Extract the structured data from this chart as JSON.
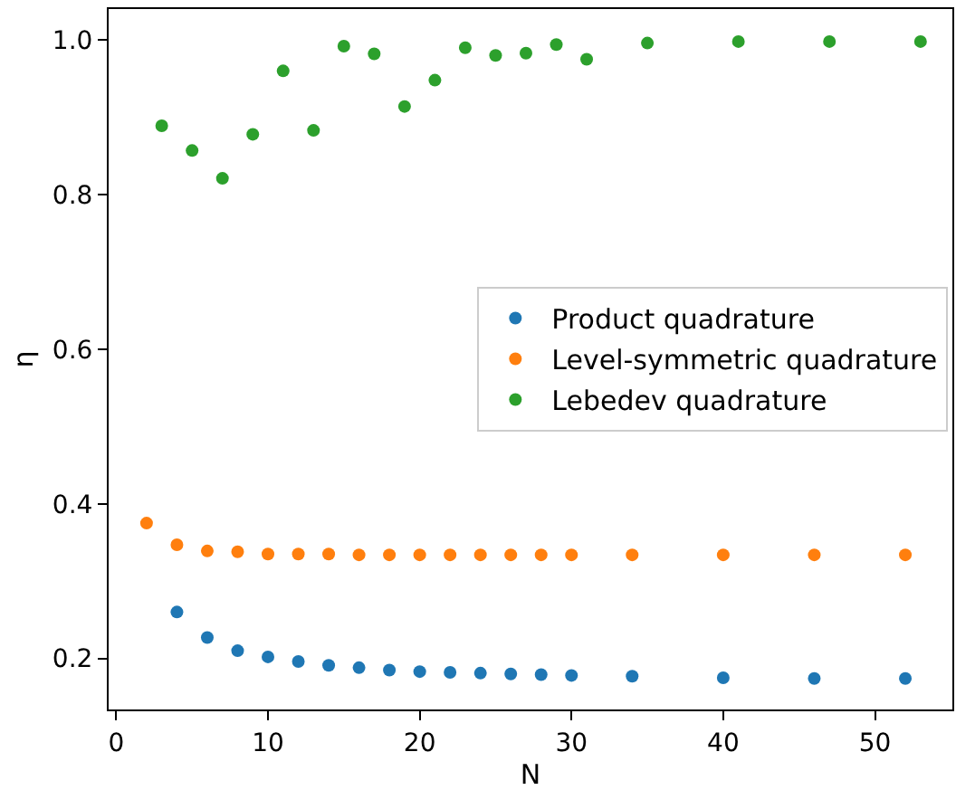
{
  "chart_data": {
    "type": "scatter",
    "xlabel": "N",
    "ylabel": "η",
    "xlim": [
      -0.5,
      55.1
    ],
    "ylim": [
      0.134,
      1.04
    ],
    "xticks": [
      0,
      10,
      20,
      30,
      40,
      50
    ],
    "yticks": [
      0.2,
      0.4,
      0.6,
      0.8,
      {
        "value": 1,
        "label": "1.0"
      }
    ],
    "legend": "right",
    "marker": "circle",
    "series": [
      {
        "name": "Product quadrature",
        "color": "#1f77b4",
        "x": [
          4,
          6,
          8,
          10,
          12,
          14,
          16,
          18,
          20,
          22,
          24,
          26,
          28,
          30,
          34,
          40,
          46,
          52
        ],
        "values": [
          0.26,
          0.227,
          0.21,
          0.202,
          0.196,
          0.191,
          0.188,
          0.185,
          0.183,
          0.182,
          0.181,
          0.18,
          0.179,
          0.178,
          0.177,
          0.175,
          0.174,
          0.174
        ]
      },
      {
        "name": "Level-symmetric quadrature",
        "color": "#ff7f0e",
        "x": [
          2,
          4,
          6,
          8,
          10,
          12,
          14,
          16,
          18,
          20,
          22,
          24,
          26,
          28,
          30,
          34,
          40,
          46,
          52
        ],
        "values": [
          0.375,
          0.347,
          0.339,
          0.338,
          0.335,
          0.335,
          0.335,
          0.334,
          0.334,
          0.334,
          0.334,
          0.334,
          0.334,
          0.334,
          0.334,
          0.334,
          0.334,
          0.334,
          0.334
        ]
      },
      {
        "name": "Lebedev quadrature",
        "color": "#2ca02c",
        "x": [
          3,
          5,
          7,
          9,
          11,
          13,
          15,
          17,
          19,
          21,
          23,
          25,
          27,
          29,
          31,
          35,
          41,
          47,
          53
        ],
        "values": [
          0.889,
          0.857,
          0.821,
          0.878,
          0.96,
          0.883,
          0.992,
          0.982,
          0.914,
          0.948,
          0.99,
          0.98,
          0.983,
          0.994,
          0.975,
          0.996,
          0.998,
          0.998,
          0.998
        ]
      }
    ]
  }
}
